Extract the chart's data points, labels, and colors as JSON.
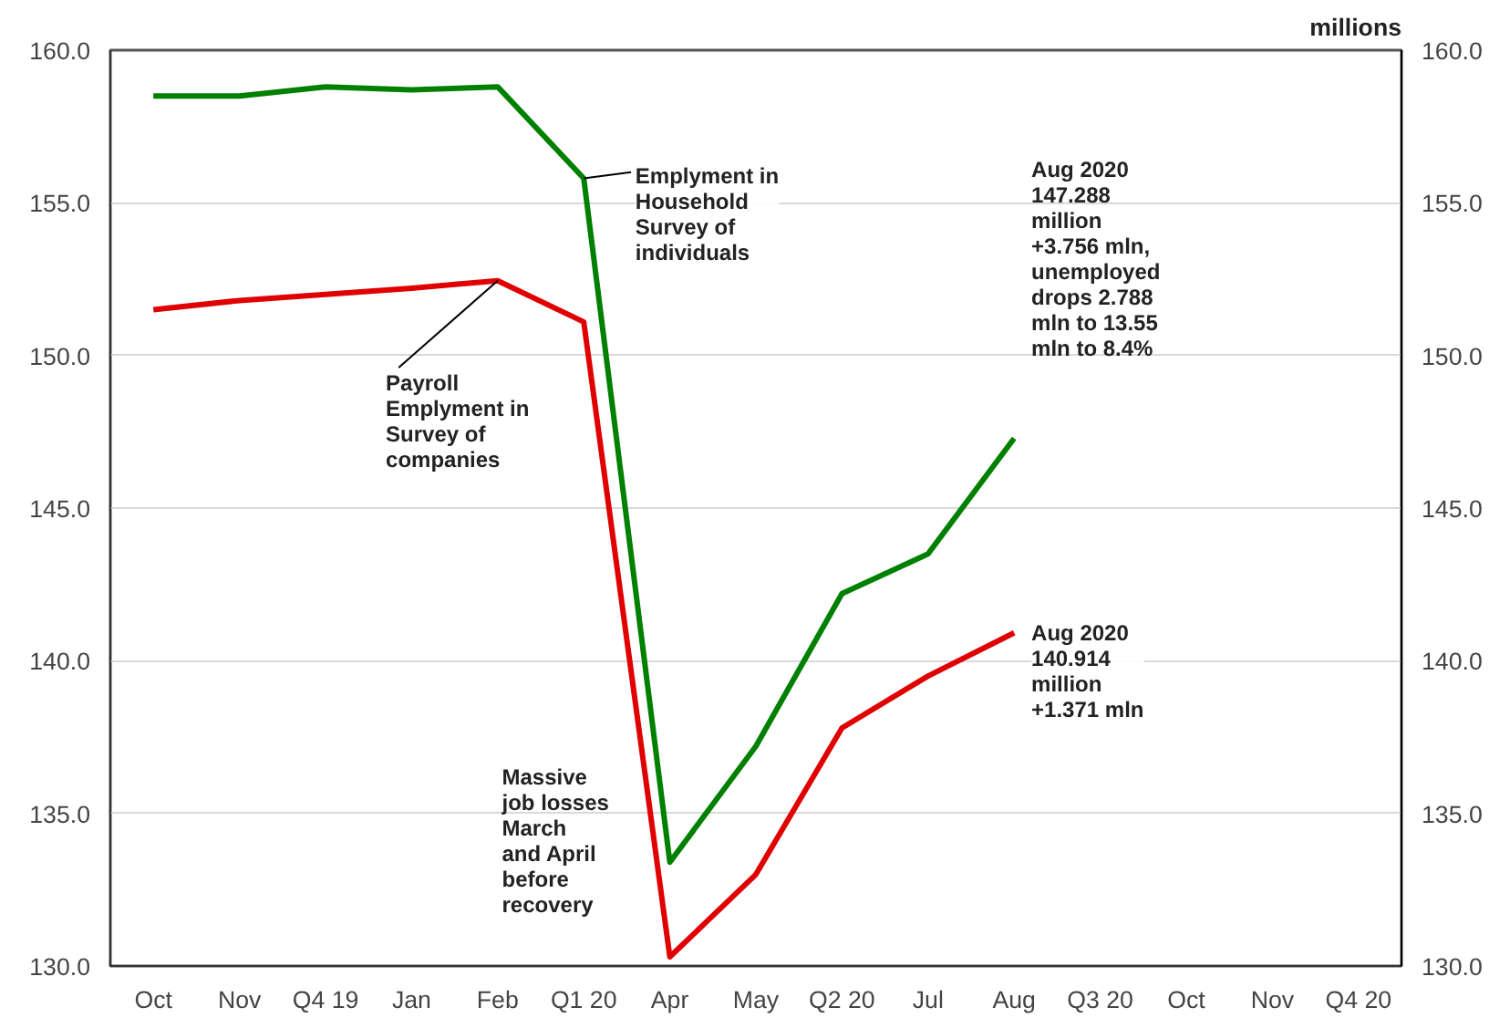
{
  "chart_data": {
    "type": "line",
    "y2label": "millions",
    "categories": [
      "Oct",
      "Nov",
      "Q4 19",
      "Jan",
      "Feb",
      "Q1 20",
      "Apr",
      "May",
      "Q2 20",
      "Jul",
      "Aug",
      "Q3 20",
      "Oct",
      "Nov",
      "Q4 20"
    ],
    "series": [
      {
        "color": "#008000",
        "values": [
          158.5,
          158.5,
          158.8,
          158.7,
          158.8,
          155.8,
          133.4,
          137.2,
          142.2,
          143.5,
          147.288,
          null,
          null,
          null,
          null
        ]
      },
      {
        "color": "#e00000",
        "values": [
          151.5,
          151.8,
          152.0,
          152.2,
          152.45,
          151.1,
          130.3,
          133.0,
          137.8,
          139.5,
          140.914,
          null,
          null,
          null,
          null
        ]
      }
    ],
    "ylim": [
      130,
      160
    ],
    "yticks": [
      {
        "value": 130,
        "label": "130.0"
      },
      {
        "value": 135,
        "label": "135.0"
      },
      {
        "value": 140,
        "label": "140.0"
      },
      {
        "value": 145,
        "label": "145.0"
      },
      {
        "value": 150,
        "label": "150.0"
      },
      {
        "value": 155,
        "label": "155.0"
      },
      {
        "value": 160,
        "label": "160.0"
      }
    ],
    "y2lim": [
      130,
      160
    ],
    "y2ticks": [
      {
        "value": 130,
        "label": "130.0"
      },
      {
        "value": 135,
        "label": "135.0"
      },
      {
        "value": 140,
        "label": "140.0"
      },
      {
        "value": 145,
        "label": "145.0"
      },
      {
        "value": 150,
        "label": "150.0"
      },
      {
        "value": 155,
        "label": "155.0"
      },
      {
        "value": 160,
        "label": "160.0"
      }
    ],
    "grid": "y",
    "marker": "none",
    "line_style": "solid",
    "annotations": [
      {
        "text": "Emplyment in\nHousehold\nSurvey of\nindividuals",
        "x": "Q1 20",
        "y": 155.8
      },
      {
        "text": "Payroll\nEmplyment in\nSurvey of\ncompanies",
        "x": "Feb",
        "y": 152.45
      },
      "Aug 2020\n147.288\nmillion\n+3.756 mln,\nunemployed\ndrops 2.788\nmln to 13.55\nmln to 8.4%",
      {
        "text": "Aug 2020\n140.914\nmillion\n+1.371 mln",
        "x": "Aug",
        "y": 140.914
      },
      "Massive\njob losses\nMarch\nand April\nbefore\nrecovery"
    ]
  }
}
